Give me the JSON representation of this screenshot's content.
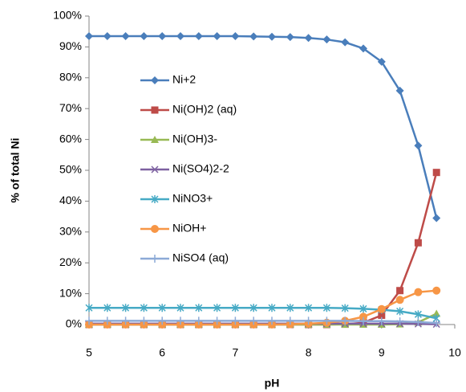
{
  "chart_data": {
    "type": "line",
    "x_label": "pH",
    "y_label": "% of total Ni",
    "x": [
      5,
      5.25,
      5.5,
      5.75,
      6,
      6.25,
      6.5,
      6.75,
      7,
      7.25,
      7.5,
      7.75,
      8,
      8.25,
      8.5,
      8.75,
      9,
      9.25,
      9.5,
      9.75
    ],
    "xlim": [
      5,
      10
    ],
    "xticks": [
      5,
      6,
      7,
      8,
      9,
      10
    ],
    "ylim": [
      0,
      100
    ],
    "yticks": [
      {
        "value": 0,
        "label": "0%"
      },
      {
        "value": 10,
        "label": "10%"
      },
      {
        "value": 20,
        "label": "20%"
      },
      {
        "value": 30,
        "label": "30%"
      },
      {
        "value": 40,
        "label": "40%"
      },
      {
        "value": 50,
        "label": "50%"
      },
      {
        "value": 60,
        "label": "60%"
      },
      {
        "value": 70,
        "label": "70%"
      },
      {
        "value": 80,
        "label": "80%"
      },
      {
        "value": 90,
        "label": "90%"
      },
      {
        "value": 100,
        "label": "100%"
      }
    ],
    "grid": false,
    "legend_position": "left",
    "series": [
      {
        "name": "Ni+2",
        "color": "#4a7ebb",
        "marker": "diamond",
        "values": [
          93.5,
          93.5,
          93.5,
          93.5,
          93.5,
          93.5,
          93.5,
          93.5,
          93.5,
          93.4,
          93.3,
          93.2,
          92.9,
          92.4,
          91.5,
          89.5,
          85.2,
          75.8,
          58,
          34.5
        ]
      },
      {
        "name": "Ni(OH)2 (aq)",
        "color": "#be4b48",
        "marker": "square",
        "values": [
          0,
          0,
          0,
          0,
          0,
          0,
          0,
          0,
          0,
          0,
          0,
          0,
          0,
          0,
          0.1,
          0.6,
          3,
          11,
          26.5,
          49.3
        ]
      },
      {
        "name": "Ni(OH)3-",
        "color": "#98b954",
        "marker": "triangle",
        "values": [
          0,
          0,
          0,
          0,
          0,
          0,
          0,
          0,
          0,
          0,
          0,
          0,
          0,
          0,
          0,
          0,
          0,
          0.1,
          0.7,
          3.5
        ]
      },
      {
        "name": "Ni(SO4)2-2",
        "color": "#7d60a0",
        "marker": "x",
        "values": [
          0.3,
          0.3,
          0.3,
          0.3,
          0.3,
          0.3,
          0.3,
          0.3,
          0.3,
          0.3,
          0.3,
          0.3,
          0.3,
          0.3,
          0.3,
          0.3,
          0.3,
          0.3,
          0.2,
          0.1
        ]
      },
      {
        "name": "NiNO3+",
        "color": "#46aac5",
        "marker": "asterisk",
        "values": [
          5.4,
          5.4,
          5.4,
          5.4,
          5.4,
          5.4,
          5.4,
          5.4,
          5.4,
          5.4,
          5.4,
          5.4,
          5.4,
          5.4,
          5.3,
          5.1,
          4.8,
          4.3,
          3.3,
          2
        ]
      },
      {
        "name": "NiOH+",
        "color": "#f79646",
        "marker": "circle",
        "values": [
          0,
          0,
          0,
          0,
          0,
          0,
          0,
          0,
          0,
          0,
          0,
          0.1,
          0.3,
          0.6,
          1.2,
          2.5,
          5,
          8,
          10.5,
          11
        ]
      },
      {
        "name": "NiSO4 (aq)",
        "color": "#8caad7",
        "marker": "plus",
        "values": [
          1.2,
          1.2,
          1.2,
          1.2,
          1.2,
          1.2,
          1.2,
          1.2,
          1.2,
          1.2,
          1.2,
          1.2,
          1.2,
          1.2,
          1.2,
          1.1,
          1.1,
          1,
          0.8,
          0.5
        ]
      }
    ]
  }
}
